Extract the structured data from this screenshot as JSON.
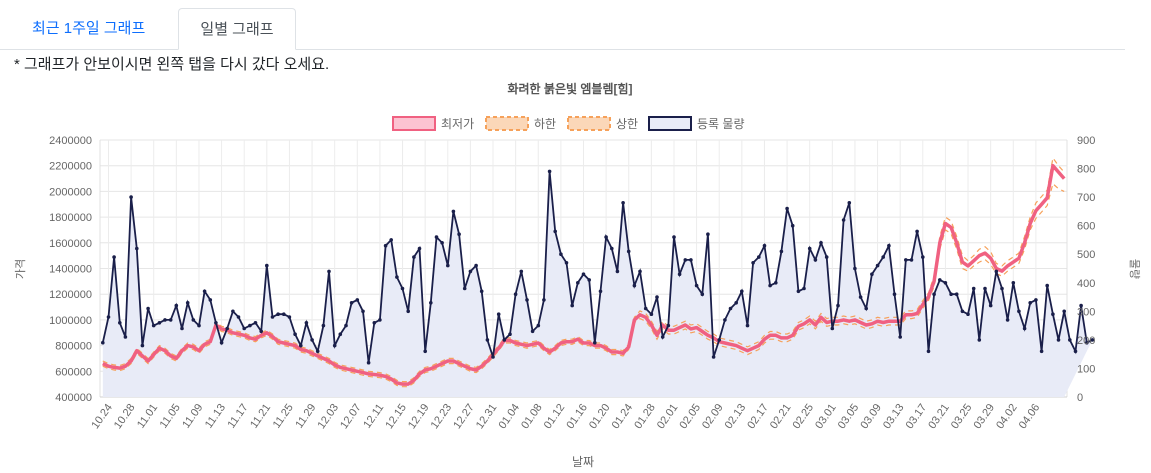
{
  "tabs": [
    {
      "label": "최근 1주일 그래프",
      "active": false
    },
    {
      "label": "일별 그래프",
      "active": true
    }
  ],
  "notice": "* 그래프가 안보이시면 왼쪽 탭을 다시 갔다 오세요.",
  "colors": {
    "price": "#f06181",
    "band": "#f6a15a",
    "volume_line": "#1a1f4a",
    "volume_fill": "#e8ebf7",
    "active_tab": "#495057",
    "link": "#0d6efd"
  },
  "chart_data": {
    "type": "line",
    "title": "화려한 붉은빛 엠블렘[힘]",
    "xlabel": "날짜",
    "ylabel": "가격",
    "y2label": "물량",
    "ylim": [
      400000,
      2400000
    ],
    "y2lim": [
      0,
      900
    ],
    "y_ticks": [
      "2400000",
      "2200000",
      "2000000",
      "1800000",
      "1600000",
      "1400000",
      "1200000",
      "1000000",
      "800000",
      "600000",
      "400000"
    ],
    "y2_ticks": [
      "900",
      "800",
      "700",
      "600",
      "500",
      "400",
      "300",
      "200",
      "100",
      "0"
    ],
    "x_tick_labels": [
      "10.24",
      "10.28",
      "11.01",
      "11.05",
      "11.09",
      "11.13",
      "11.17",
      "11.21",
      "11.25",
      "11.29",
      "12.03",
      "12.07",
      "12.11",
      "12.15",
      "12.19",
      "12.23",
      "12.27",
      "12.31",
      "01.04",
      "01.08",
      "01.12",
      "01.16",
      "01.20",
      "01.24",
      "01.28",
      "02.01",
      "02.05",
      "02.09",
      "02.13",
      "02.17",
      "02.21",
      "02.25",
      "03.01",
      "03.05",
      "03.09",
      "03.13",
      "03.17",
      "03.21",
      "03.25",
      "03.29",
      "04.02",
      "04.06"
    ],
    "grid": true,
    "legend_position": "top",
    "series": [
      {
        "name": "최저가",
        "axis": "left",
        "values": [
          660000,
          640000,
          630000,
          625000,
          640000,
          680000,
          760000,
          720000,
          680000,
          730000,
          780000,
          760000,
          720000,
          700000,
          760000,
          800000,
          790000,
          760000,
          810000,
          830000,
          960000,
          930000,
          920000,
          900000,
          890000,
          880000,
          860000,
          850000,
          880000,
          900000,
          870000,
          830000,
          820000,
          810000,
          800000,
          770000,
          760000,
          740000,
          720000,
          700000,
          680000,
          650000,
          630000,
          620000,
          610000,
          600000,
          590000,
          580000,
          575000,
          570000,
          560000,
          540000,
          510000,
          500000,
          500000,
          530000,
          580000,
          610000,
          620000,
          640000,
          660000,
          680000,
          680000,
          660000,
          640000,
          620000,
          610000,
          640000,
          680000,
          730000,
          780000,
          840000,
          840000,
          820000,
          810000,
          800000,
          810000,
          820000,
          780000,
          750000,
          780000,
          820000,
          830000,
          830000,
          850000,
          820000,
          820000,
          800000,
          800000,
          780000,
          750000,
          750000,
          740000,
          790000,
          1000000,
          1040000,
          1020000,
          960000,
          880000,
          960000,
          920000,
          920000,
          940000,
          960000,
          930000,
          940000,
          910000,
          880000,
          860000,
          830000,
          820000,
          810000,
          800000,
          780000,
          760000,
          780000,
          800000,
          850000,
          880000,
          880000,
          860000,
          860000,
          880000,
          950000,
          970000,
          1000000,
          960000,
          1020000,
          980000,
          990000,
          990000,
          1000000,
          990000,
          1000000,
          980000,
          960000,
          970000,
          990000,
          980000,
          990000,
          990000,
          990000,
          1040000,
          1040000,
          1050000,
          1120000,
          1180000,
          1300000,
          1600000,
          1750000,
          1720000,
          1600000,
          1450000,
          1420000,
          1460000,
          1500000,
          1520000,
          1480000,
          1400000,
          1380000,
          1420000,
          1450000,
          1480000,
          1600000,
          1750000,
          1850000,
          1900000,
          1950000,
          2200000,
          2150000,
          2100000
        ],
        "note": "daily minimum price"
      },
      {
        "name": "하한",
        "axis": "left",
        "values": [
          640000,
          620000,
          610000,
          605000,
          620000,
          660000,
          740000,
          700000,
          660000,
          710000,
          760000,
          740000,
          700000,
          680000,
          740000,
          780000,
          770000,
          740000,
          790000,
          810000,
          940000,
          910000,
          900000,
          880000,
          870000,
          860000,
          840000,
          830000,
          860000,
          880000,
          850000,
          810000,
          800000,
          790000,
          780000,
          750000,
          740000,
          720000,
          700000,
          680000,
          660000,
          630000,
          610000,
          600000,
          590000,
          580000,
          570000,
          560000,
          555000,
          550000,
          540000,
          520000,
          490000,
          480000,
          480000,
          510000,
          560000,
          590000,
          600000,
          620000,
          640000,
          660000,
          660000,
          640000,
          620000,
          600000,
          590000,
          620000,
          660000,
          710000,
          760000,
          820000,
          820000,
          800000,
          790000,
          780000,
          790000,
          800000,
          760000,
          730000,
          760000,
          800000,
          810000,
          810000,
          830000,
          800000,
          800000,
          780000,
          780000,
          760000,
          730000,
          730000,
          720000,
          770000,
          980000,
          1010000,
          990000,
          930000,
          850000,
          930000,
          890000,
          890000,
          910000,
          930000,
          900000,
          910000,
          880000,
          850000,
          830000,
          800000,
          790000,
          780000,
          770000,
          750000,
          730000,
          750000,
          770000,
          820000,
          850000,
          850000,
          830000,
          830000,
          850000,
          920000,
          940000,
          970000,
          930000,
          990000,
          950000,
          960000,
          960000,
          970000,
          960000,
          970000,
          950000,
          930000,
          940000,
          960000,
          950000,
          960000,
          960000,
          960000,
          1010000,
          1010000,
          1020000,
          1090000,
          1150000,
          1260000,
          1550000,
          1700000,
          1670000,
          1550000,
          1400000,
          1380000,
          1420000,
          1450000,
          1470000,
          1430000,
          1360000,
          1340000,
          1380000,
          1410000,
          1440000,
          1550000,
          1700000,
          1790000,
          1840000,
          1890000,
          2060000,
          2020000,
          2000000
        ]
      },
      {
        "name": "상한",
        "axis": "left",
        "values": [
          680000,
          660000,
          650000,
          645000,
          660000,
          700000,
          780000,
          740000,
          700000,
          750000,
          800000,
          780000,
          740000,
          720000,
          780000,
          820000,
          810000,
          780000,
          830000,
          850000,
          980000,
          950000,
          940000,
          920000,
          910000,
          900000,
          880000,
          870000,
          900000,
          920000,
          890000,
          850000,
          840000,
          830000,
          820000,
          790000,
          780000,
          760000,
          740000,
          720000,
          700000,
          670000,
          650000,
          640000,
          630000,
          620000,
          610000,
          600000,
          595000,
          590000,
          580000,
          560000,
          530000,
          520000,
          520000,
          550000,
          600000,
          630000,
          640000,
          660000,
          680000,
          700000,
          700000,
          680000,
          660000,
          640000,
          630000,
          660000,
          700000,
          750000,
          800000,
          860000,
          860000,
          840000,
          830000,
          820000,
          830000,
          840000,
          800000,
          770000,
          800000,
          840000,
          850000,
          850000,
          870000,
          840000,
          840000,
          820000,
          820000,
          800000,
          770000,
          770000,
          760000,
          810000,
          1020000,
          1070000,
          1050000,
          990000,
          910000,
          990000,
          950000,
          950000,
          970000,
          990000,
          960000,
          970000,
          940000,
          910000,
          890000,
          860000,
          850000,
          840000,
          830000,
          810000,
          790000,
          810000,
          830000,
          880000,
          910000,
          910000,
          890000,
          890000,
          910000,
          980000,
          1000000,
          1030000,
          990000,
          1050000,
          1010000,
          1020000,
          1020000,
          1030000,
          1020000,
          1030000,
          1010000,
          990000,
          1000000,
          1020000,
          1010000,
          1020000,
          1020000,
          1020000,
          1070000,
          1070000,
          1080000,
          1150000,
          1210000,
          1340000,
          1650000,
          1800000,
          1770000,
          1650000,
          1500000,
          1460000,
          1500000,
          1550000,
          1570000,
          1530000,
          1440000,
          1420000,
          1460000,
          1490000,
          1520000,
          1650000,
          1800000,
          1910000,
          1960000,
          2010000,
          2260000,
          2200000,
          2150000
        ]
      },
      {
        "name": "등록 물량",
        "axis": "right",
        "values": [
          190,
          280,
          490,
          260,
          210,
          700,
          520,
          180,
          310,
          250,
          260,
          270,
          270,
          320,
          240,
          330,
          270,
          250,
          370,
          340,
          260,
          190,
          240,
          300,
          280,
          240,
          250,
          260,
          230,
          460,
          280,
          290,
          290,
          280,
          220,
          180,
          260,
          200,
          160,
          250,
          440,
          180,
          220,
          250,
          330,
          340,
          300,
          120,
          260,
          270,
          530,
          550,
          420,
          380,
          300,
          490,
          520,
          160,
          330,
          560,
          540,
          460,
          650,
          570,
          380,
          440,
          460,
          370,
          200,
          140,
          290,
          200,
          220,
          360,
          440,
          340,
          230,
          250,
          340,
          790,
          580,
          500,
          470,
          320,
          400,
          430,
          410,
          190,
          370,
          560,
          520,
          440,
          680,
          510,
          390,
          440,
          310,
          290,
          350,
          210,
          250,
          560,
          430,
          480,
          480,
          390,
          360,
          570,
          140,
          200,
          270,
          310,
          330,
          370,
          250,
          470,
          490,
          530,
          390,
          400,
          510,
          660,
          600,
          370,
          380,
          520,
          480,
          540,
          490,
          240,
          320,
          620,
          680,
          450,
          350,
          310,
          430,
          460,
          490,
          530,
          360,
          210,
          480,
          480,
          580,
          490,
          160,
          360,
          410,
          400,
          360,
          360,
          300,
          290,
          380,
          200,
          380,
          320,
          440,
          380,
          270,
          400,
          300,
          240,
          330,
          340,
          160,
          390,
          290,
          200,
          300,
          200,
          160,
          320,
          190,
          200
        ],
        "note": "volume on right axis"
      }
    ]
  }
}
